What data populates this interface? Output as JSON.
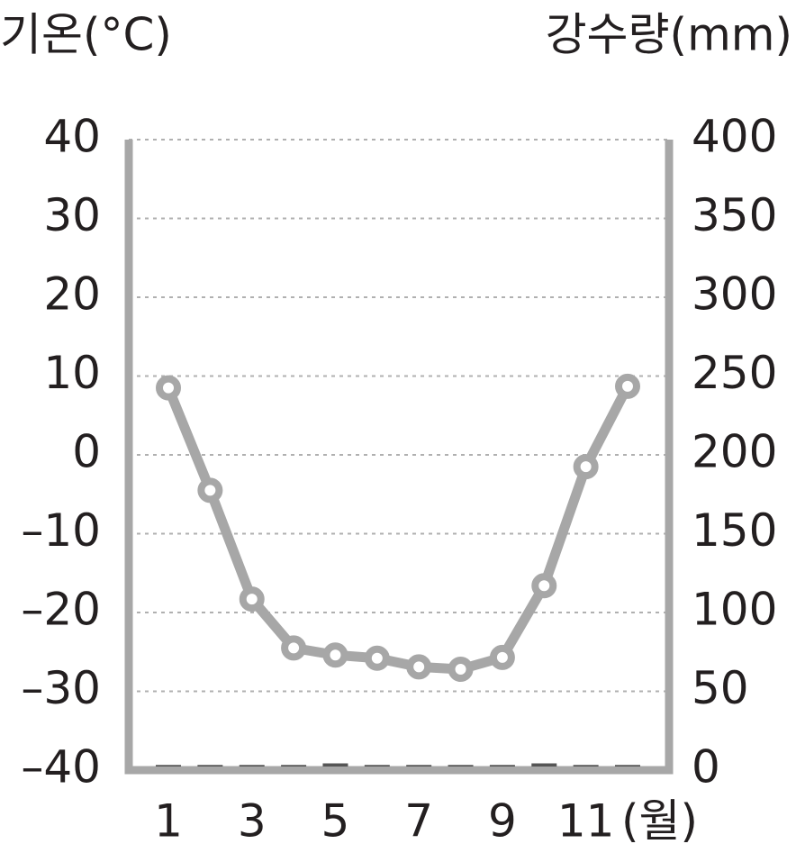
{
  "chart_data": {
    "type": "line",
    "y_title": "기온(°C)",
    "y2_title": "강수량(mm)",
    "x_unit": "(월)",
    "categories": [
      "1",
      null,
      "3",
      null,
      "5",
      null,
      "7",
      null,
      "9",
      null,
      "11",
      null
    ],
    "series": [
      {
        "type": "line",
        "color": "#a7a7a7",
        "values": [
          8.5,
          -4.5,
          -18.3,
          -24.5,
          -25.4,
          -25.8,
          -26.9,
          -27.2,
          -25.7,
          -16.6,
          -1.5,
          8.7
        ]
      },
      {
        "type": "bar",
        "axis": "y2",
        "color": "#555555",
        "values": [
          1,
          1,
          1,
          1,
          2,
          1,
          1,
          1,
          1,
          2,
          1,
          1
        ]
      }
    ],
    "ylim": [
      -40,
      40
    ],
    "yticks": [
      {
        "value": -40,
        "label": "–40"
      },
      {
        "value": -30,
        "label": "–30"
      },
      {
        "value": -20,
        "label": "–20"
      },
      {
        "value": -10,
        "label": "–10"
      },
      0,
      10,
      20,
      30,
      40
    ],
    "y2lim": [
      0,
      400
    ],
    "y2ticks": [
      0,
      50,
      100,
      150,
      200,
      250,
      300,
      350,
      400
    ],
    "grid": true
  }
}
